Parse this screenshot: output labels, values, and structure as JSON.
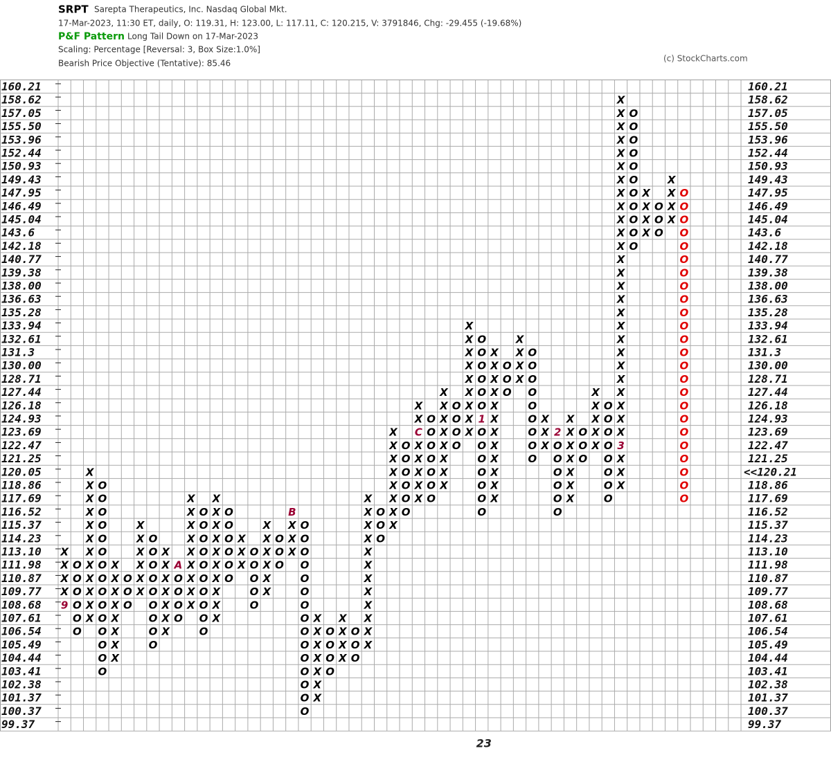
{
  "chart_data": {
    "type": "point-and-figure",
    "symbol": "SRPT",
    "company": "Sarepta Therapeutics, Inc.  Nasdaq Global Mkt.",
    "quote_line": "17-Mar-2023, 11:30 ET, daily, O: 119.31, H: 123.00, L: 117.11, C: 120.215, V: 3791846, Chg: -29.455 (-19.68%)",
    "pattern_title": "P&F Pattern",
    "pattern": "Long Tail Down on 17-Mar-2023",
    "scaling": "Scaling: Percentage [Reversal: 3, Box Size:1.0%]",
    "objective": "Bearish Price Objective (Tentative): 85.46",
    "copyright": "(c) StockCharts.com",
    "yticks": [
      160.21,
      158.62,
      157.05,
      {
        "value": 155.5,
        "label": "155.50"
      },
      153.96,
      152.44,
      150.93,
      149.43,
      147.95,
      146.49,
      145.04,
      143.6,
      142.18,
      140.77,
      139.38,
      {
        "value": 138,
        "label": "138.00"
      },
      136.63,
      135.28,
      133.94,
      132.61,
      131.3,
      {
        "value": 130,
        "label": "130.00"
      },
      128.71,
      127.44,
      126.18,
      124.93,
      123.69,
      122.47,
      121.25,
      120.05,
      118.86,
      117.69,
      116.52,
      115.37,
      114.23,
      {
        "value": 113.1,
        "label": "113.10"
      },
      111.98,
      110.87,
      109.77,
      108.68,
      107.61,
      106.54,
      105.49,
      104.44,
      103.41,
      102.38,
      101.37,
      100.37,
      99.37
    ],
    "last_price": {
      "value": 120.21,
      "label": "<<120.21"
    },
    "box_color": "#000000",
    "marker_color": "#990033",
    "grid": true,
    "columns": [
      {
        "type": "X",
        "high": 113.1,
        "low": 108.68,
        "markers": [
          {
            "label": "9",
            "value": 108.68
          }
        ]
      },
      {
        "type": "O",
        "high": 111.98,
        "low": 106.54
      },
      {
        "type": "X",
        "high": 120.05,
        "low": 107.61
      },
      {
        "type": "O",
        "high": 118.86,
        "low": 103.41
      },
      {
        "type": "X",
        "high": 111.98,
        "low": 104.44
      },
      {
        "type": "O",
        "high": 110.87,
        "low": 108.68
      },
      {
        "type": "X",
        "high": 115.37,
        "low": 109.77
      },
      {
        "type": "O",
        "high": 114.23,
        "low": 105.49
      },
      {
        "type": "X",
        "high": 113.1,
        "low": 106.54
      },
      {
        "type": "O",
        "high": 111.98,
        "low": 107.61,
        "markers": [
          {
            "label": "A",
            "value": 111.98
          }
        ]
      },
      {
        "type": "X",
        "high": 117.69,
        "low": 108.68
      },
      {
        "type": "O",
        "high": 116.52,
        "low": 106.54
      },
      {
        "type": "X",
        "high": 117.69,
        "low": 107.61
      },
      {
        "type": "O",
        "high": 116.52,
        "low": 110.87
      },
      {
        "type": "X",
        "high": 114.23,
        "low": 111.98
      },
      {
        "type": "O",
        "high": 113.1,
        "low": 108.68
      },
      {
        "type": "X",
        "high": 115.37,
        "low": 109.77
      },
      {
        "type": "O",
        "high": 114.23,
        "low": 111.98
      },
      {
        "type": "X",
        "high": 116.52,
        "low": 113.1,
        "markers": [
          {
            "label": "B",
            "value": 116.52
          }
        ]
      },
      {
        "type": "O",
        "high": 115.37,
        "low": 100.37
      },
      {
        "type": "X",
        "high": 107.61,
        "low": 101.37
      },
      {
        "type": "O",
        "high": 106.54,
        "low": 103.41
      },
      {
        "type": "X",
        "high": 107.61,
        "low": 104.44
      },
      {
        "type": "O",
        "high": 106.54,
        "low": 104.44
      },
      {
        "type": "X",
        "high": 117.69,
        "low": 105.49
      },
      {
        "type": "O",
        "high": 116.52,
        "low": 114.23
      },
      {
        "type": "X",
        "high": 123.69,
        "low": 115.37
      },
      {
        "type": "O",
        "high": 122.47,
        "low": 116.52
      },
      {
        "type": "X",
        "high": 126.18,
        "low": 117.69,
        "markers": [
          {
            "label": "C",
            "value": 123.69
          }
        ]
      },
      {
        "type": "O",
        "high": 124.93,
        "low": 117.69
      },
      {
        "type": "X",
        "high": 127.44,
        "low": 118.86
      },
      {
        "type": "O",
        "high": 126.18,
        "low": 122.47
      },
      {
        "type": "X",
        "high": 133.94,
        "low": 123.69
      },
      {
        "type": "O",
        "high": 132.61,
        "low": 116.52,
        "markers": [
          {
            "label": "1",
            "value": 124.93
          }
        ],
        "year_label": "23"
      },
      {
        "type": "X",
        "high": 131.3,
        "low": 117.69
      },
      {
        "type": "O",
        "high": 130,
        "low": 127.44
      },
      {
        "type": "X",
        "high": 132.61,
        "low": 128.71
      },
      {
        "type": "O",
        "high": 131.3,
        "low": 121.25
      },
      {
        "type": "X",
        "high": 124.93,
        "low": 122.47
      },
      {
        "type": "O",
        "high": 123.69,
        "low": 116.52,
        "markers": [
          {
            "label": "2",
            "value": 123.69
          }
        ]
      },
      {
        "type": "X",
        "high": 124.93,
        "low": 117.69
      },
      {
        "type": "O",
        "high": 123.69,
        "low": 121.25
      },
      {
        "type": "X",
        "high": 127.44,
        "low": 122.47
      },
      {
        "type": "O",
        "high": 126.18,
        "low": 117.69
      },
      {
        "type": "X",
        "high": 158.62,
        "low": 118.86,
        "markers": [
          {
            "label": "3",
            "value": 122.47
          }
        ]
      },
      {
        "type": "O",
        "high": 157.05,
        "low": 142.18
      },
      {
        "type": "X",
        "high": 147.95,
        "low": 143.6
      },
      {
        "type": "O",
        "high": 146.49,
        "low": 143.6
      },
      {
        "type": "X",
        "high": 149.43,
        "low": 145.04
      },
      {
        "type": "O",
        "high": 147.95,
        "low": 117.69,
        "color": "#e00000"
      }
    ]
  }
}
